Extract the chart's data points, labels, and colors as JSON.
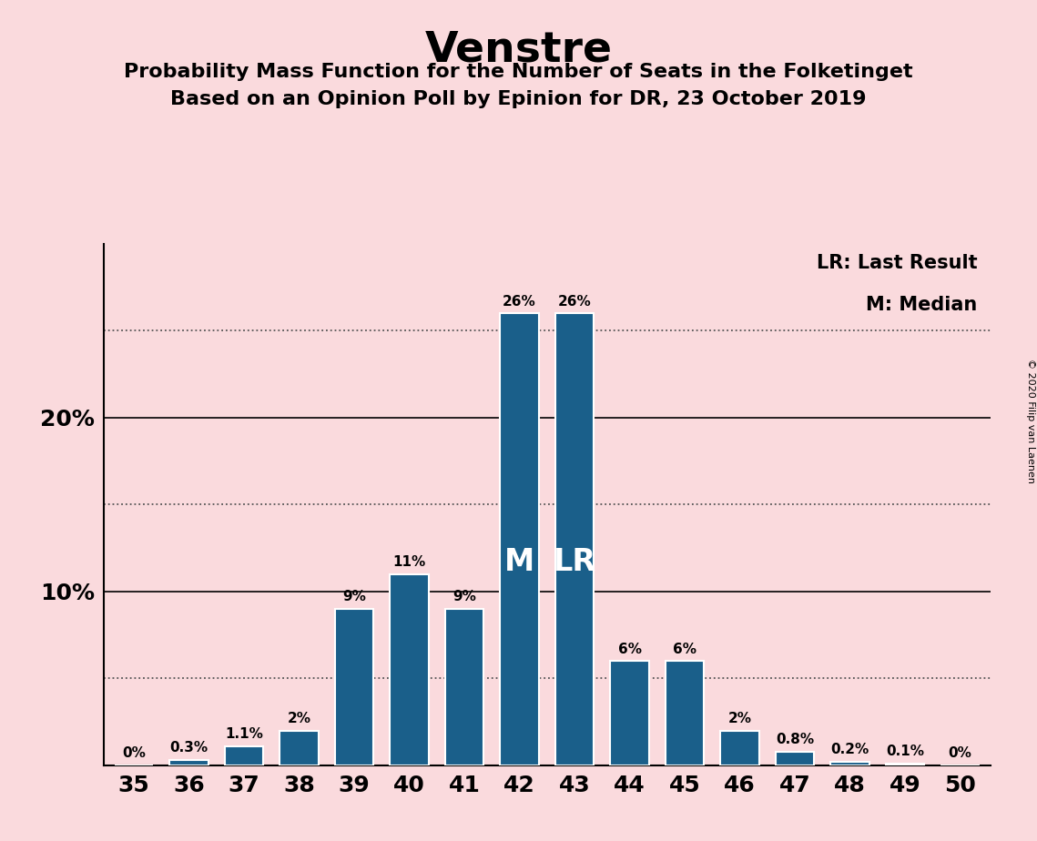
{
  "title": "Venstre",
  "subtitle1": "Probability Mass Function for the Number of Seats in the Folketinget",
  "subtitle2": "Based on an Opinion Poll by Epinion for DR, 23 October 2019",
  "copyright": "© 2020 Filip van Laenen",
  "categories": [
    35,
    36,
    37,
    38,
    39,
    40,
    41,
    42,
    43,
    44,
    45,
    46,
    47,
    48,
    49,
    50
  ],
  "values": [
    0.0,
    0.3,
    1.1,
    2.0,
    9.0,
    11.0,
    9.0,
    26.0,
    26.0,
    6.0,
    6.0,
    2.0,
    0.8,
    0.2,
    0.1,
    0.0
  ],
  "labels": [
    "0%",
    "0.3%",
    "1.1%",
    "2%",
    "9%",
    "11%",
    "9%",
    "26%",
    "26%",
    "6%",
    "6%",
    "2%",
    "0.8%",
    "0.2%",
    "0.1%",
    "0%"
  ],
  "bar_color": "#1a5f8a",
  "background_color": "#fadadd",
  "median_seat": 42,
  "lr_seat": 43,
  "median_label": "M",
  "lr_label": "LR",
  "legend_lr": "LR: Last Result",
  "legend_m": "M: Median",
  "ylim": [
    0,
    30
  ],
  "dotted_lines": [
    5,
    15,
    25
  ],
  "solid_lines": [
    10,
    20
  ],
  "bar_width": 0.7,
  "label_fontsize": 11,
  "axis_tick_fontsize": 18,
  "title_fontsize": 34,
  "subtitle_fontsize": 16,
  "legend_fontsize": 15,
  "inner_label_fontsize": 24,
  "copyright_fontsize": 8
}
